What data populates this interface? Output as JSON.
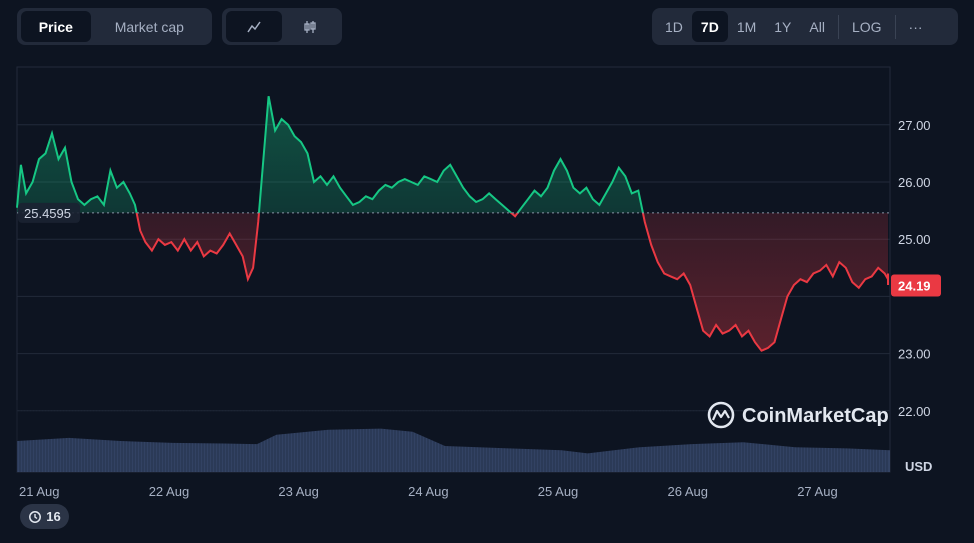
{
  "toolbar": {
    "type_tabs": [
      {
        "label": "Price",
        "active": true
      },
      {
        "label": "Market cap",
        "active": false
      }
    ],
    "view_tabs": [
      {
        "icon": "line-chart-icon",
        "active": true
      },
      {
        "icon": "candlestick-icon",
        "active": false
      }
    ],
    "ranges": [
      {
        "label": "1D",
        "active": false
      },
      {
        "label": "7D",
        "active": true
      },
      {
        "label": "1M",
        "active": false
      },
      {
        "label": "1Y",
        "active": false
      },
      {
        "label": "All",
        "active": false
      }
    ],
    "log_label": "LOG",
    "more_label": "···"
  },
  "history_badge": {
    "count": "16",
    "icon": "history-icon"
  },
  "watermark": {
    "text": "CoinMarketCap",
    "icon": "coinmarketcap-logo-icon"
  },
  "colors": {
    "up": "#16c784",
    "down": "#ea3943",
    "volume": "#3a4a6e"
  },
  "chart_data": {
    "type": "area",
    "baseline": 25.4595,
    "baseline_label": "25.4595",
    "current_price": 24.19,
    "current_price_label": "24.19",
    "currency": "USD",
    "ylim": [
      21.0,
      28.0
    ],
    "y_ticks": [
      "27.00",
      "26.00",
      "25.00",
      "23.00",
      "22.00"
    ],
    "x_ticks": [
      "21 Aug",
      "22 Aug",
      "23 Aug",
      "24 Aug",
      "25 Aug",
      "26 Aug",
      "27 Aug"
    ],
    "x_tick_positions": [
      0,
      1,
      2,
      3,
      4,
      5,
      6
    ],
    "xlim": [
      0,
      7.0
    ],
    "price_series": [
      [
        0.0,
        25.55
      ],
      [
        0.03,
        26.3
      ],
      [
        0.07,
        25.8
      ],
      [
        0.12,
        26.0
      ],
      [
        0.17,
        26.4
      ],
      [
        0.22,
        26.5
      ],
      [
        0.27,
        26.85
      ],
      [
        0.32,
        26.4
      ],
      [
        0.37,
        26.6
      ],
      [
        0.42,
        26.0
      ],
      [
        0.47,
        25.7
      ],
      [
        0.52,
        25.6
      ],
      [
        0.57,
        25.7
      ],
      [
        0.62,
        25.75
      ],
      [
        0.67,
        25.6
      ],
      [
        0.72,
        26.2
      ],
      [
        0.77,
        25.9
      ],
      [
        0.82,
        26.0
      ],
      [
        0.87,
        25.8
      ],
      [
        0.91,
        25.6
      ],
      [
        0.95,
        25.15
      ],
      [
        0.99,
        24.95
      ],
      [
        1.04,
        24.8
      ],
      [
        1.09,
        25.0
      ],
      [
        1.14,
        24.9
      ],
      [
        1.19,
        24.95
      ],
      [
        1.24,
        24.8
      ],
      [
        1.29,
        25.0
      ],
      [
        1.34,
        24.8
      ],
      [
        1.39,
        24.95
      ],
      [
        1.44,
        24.7
      ],
      [
        1.49,
        24.8
      ],
      [
        1.54,
        24.75
      ],
      [
        1.59,
        24.9
      ],
      [
        1.64,
        25.1
      ],
      [
        1.69,
        24.9
      ],
      [
        1.74,
        24.7
      ],
      [
        1.78,
        24.3
      ],
      [
        1.82,
        24.5
      ],
      [
        1.86,
        25.3
      ],
      [
        1.9,
        26.4
      ],
      [
        1.94,
        27.5
      ],
      [
        1.99,
        26.9
      ],
      [
        2.04,
        27.1
      ],
      [
        2.09,
        27.0
      ],
      [
        2.14,
        26.8
      ],
      [
        2.19,
        26.7
      ],
      [
        2.24,
        26.5
      ],
      [
        2.29,
        26.0
      ],
      [
        2.34,
        26.1
      ],
      [
        2.39,
        25.95
      ],
      [
        2.44,
        26.1
      ],
      [
        2.49,
        25.9
      ],
      [
        2.54,
        25.75
      ],
      [
        2.59,
        25.6
      ],
      [
        2.64,
        25.65
      ],
      [
        2.69,
        25.75
      ],
      [
        2.74,
        25.7
      ],
      [
        2.79,
        25.85
      ],
      [
        2.84,
        25.95
      ],
      [
        2.89,
        25.9
      ],
      [
        2.94,
        26.0
      ],
      [
        2.99,
        26.05
      ],
      [
        3.04,
        26.0
      ],
      [
        3.09,
        25.95
      ],
      [
        3.14,
        26.1
      ],
      [
        3.19,
        26.05
      ],
      [
        3.24,
        26.0
      ],
      [
        3.29,
        26.2
      ],
      [
        3.34,
        26.3
      ],
      [
        3.39,
        26.1
      ],
      [
        3.44,
        25.9
      ],
      [
        3.49,
        25.75
      ],
      [
        3.54,
        25.65
      ],
      [
        3.59,
        25.7
      ],
      [
        3.64,
        25.8
      ],
      [
        3.69,
        25.7
      ],
      [
        3.74,
        25.6
      ],
      [
        3.79,
        25.5
      ],
      [
        3.84,
        25.4
      ],
      [
        3.89,
        25.55
      ],
      [
        3.94,
        25.7
      ],
      [
        3.99,
        25.85
      ],
      [
        4.04,
        25.75
      ],
      [
        4.09,
        25.9
      ],
      [
        4.14,
        26.2
      ],
      [
        4.19,
        26.4
      ],
      [
        4.24,
        26.2
      ],
      [
        4.29,
        25.9
      ],
      [
        4.34,
        25.8
      ],
      [
        4.39,
        25.9
      ],
      [
        4.44,
        25.7
      ],
      [
        4.49,
        25.6
      ],
      [
        4.54,
        25.8
      ],
      [
        4.59,
        26.0
      ],
      [
        4.64,
        26.25
      ],
      [
        4.69,
        26.1
      ],
      [
        4.74,
        25.8
      ],
      [
        4.79,
        25.85
      ],
      [
        4.84,
        25.3
      ],
      [
        4.89,
        24.9
      ],
      [
        4.94,
        24.6
      ],
      [
        4.99,
        24.4
      ],
      [
        5.04,
        24.35
      ],
      [
        5.09,
        24.3
      ],
      [
        5.14,
        24.4
      ],
      [
        5.19,
        24.2
      ],
      [
        5.24,
        23.8
      ],
      [
        5.29,
        23.4
      ],
      [
        5.34,
        23.3
      ],
      [
        5.39,
        23.5
      ],
      [
        5.44,
        23.35
      ],
      [
        5.49,
        23.4
      ],
      [
        5.54,
        23.5
      ],
      [
        5.59,
        23.3
      ],
      [
        5.64,
        23.4
      ],
      [
        5.69,
        23.2
      ],
      [
        5.74,
        23.05
      ],
      [
        5.79,
        23.1
      ],
      [
        5.84,
        23.2
      ],
      [
        5.89,
        23.6
      ],
      [
        5.94,
        24.0
      ],
      [
        5.99,
        24.2
      ],
      [
        6.04,
        24.3
      ],
      [
        6.09,
        24.25
      ],
      [
        6.14,
        24.4
      ],
      [
        6.19,
        24.45
      ],
      [
        6.24,
        24.55
      ],
      [
        6.29,
        24.35
      ],
      [
        6.34,
        24.6
      ],
      [
        6.39,
        24.5
      ],
      [
        6.44,
        24.25
      ],
      [
        6.49,
        24.15
      ],
      [
        6.54,
        24.3
      ],
      [
        6.59,
        24.35
      ],
      [
        6.64,
        24.5
      ],
      [
        6.69,
        24.4
      ],
      [
        6.74,
        24.3
      ],
      [
        6.79,
        24.35
      ],
      [
        6.84,
        24.25
      ],
      [
        6.89,
        24.2
      ],
      [
        6.94,
        24.4
      ],
      [
        6.99,
        24.25
      ]
    ],
    "volume_relative": [
      [
        0.0,
        0.5
      ],
      [
        0.4,
        0.55
      ],
      [
        0.8,
        0.5
      ],
      [
        1.2,
        0.47
      ],
      [
        1.6,
        0.46
      ],
      [
        1.85,
        0.45
      ],
      [
        2.0,
        0.6
      ],
      [
        2.4,
        0.68
      ],
      [
        2.8,
        0.7
      ],
      [
        3.05,
        0.65
      ],
      [
        3.3,
        0.42
      ],
      [
        3.8,
        0.38
      ],
      [
        4.2,
        0.35
      ],
      [
        4.4,
        0.3
      ],
      [
        4.8,
        0.4
      ],
      [
        5.2,
        0.45
      ],
      [
        5.6,
        0.48
      ],
      [
        6.0,
        0.4
      ],
      [
        6.4,
        0.38
      ],
      [
        6.8,
        0.35
      ],
      [
        7.0,
        0.32
      ]
    ]
  }
}
